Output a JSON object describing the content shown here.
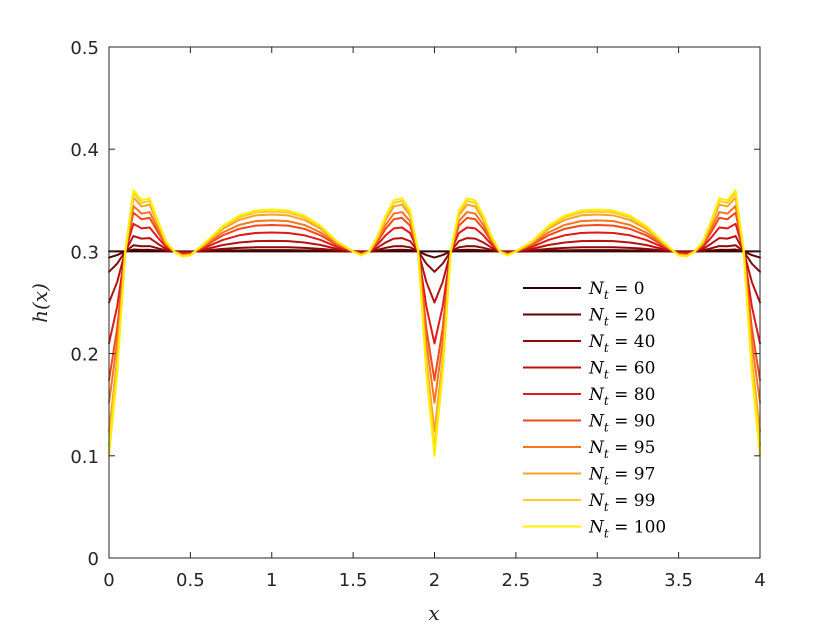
{
  "chart_data": {
    "type": "line",
    "xlabel": "x",
    "ylabel": "h(x)",
    "xlim": [
      0,
      4
    ],
    "ylim": [
      0,
      0.5
    ],
    "xticks": [
      0,
      0.5,
      1,
      1.5,
      2,
      2.5,
      3,
      3.5,
      4
    ],
    "xtick_labels": [
      "0",
      "0.5",
      "1",
      "1.5",
      "2",
      "2.5",
      "3",
      "3.5",
      "4"
    ],
    "yticks": [
      0,
      0.1,
      0.2,
      0.3,
      0.4,
      0.5
    ],
    "ytick_labels": [
      "0",
      "0.1",
      "0.2",
      "0.3",
      "0.4",
      "0.5"
    ],
    "grid": false,
    "legend_position": "lower-right",
    "x": [
      0,
      0.05,
      0.1,
      0.15,
      0.2,
      0.25,
      0.3,
      0.35,
      0.4,
      0.45,
      0.5,
      0.6,
      0.7,
      0.8,
      0.9,
      1.0,
      1.1,
      1.2,
      1.3,
      1.4,
      1.5,
      1.55,
      1.6,
      1.65,
      1.7,
      1.75,
      1.8,
      1.85,
      1.9,
      1.95,
      2.0,
      2.05,
      2.1,
      2.15,
      2.2,
      2.25,
      2.3,
      2.35,
      2.4,
      2.45,
      2.5,
      2.6,
      2.7,
      2.8,
      2.9,
      3.0,
      3.1,
      3.2,
      3.3,
      3.4,
      3.5,
      3.55,
      3.6,
      3.65,
      3.7,
      3.75,
      3.8,
      3.85,
      3.9,
      3.95,
      4.0
    ],
    "base_shape": [
      -0.2,
      -0.12,
      0.0,
      0.06,
      0.05,
      0.052,
      0.03,
      0.01,
      0.0,
      -0.005,
      -0.004,
      0.01,
      0.025,
      0.035,
      0.04,
      0.041,
      0.04,
      0.035,
      0.025,
      0.01,
      0.0,
      -0.004,
      0.0,
      0.015,
      0.035,
      0.05,
      0.052,
      0.04,
      0.0,
      -0.12,
      -0.2,
      -0.12,
      0.0,
      0.04,
      0.052,
      0.05,
      0.035,
      0.015,
      0.0,
      -0.004,
      0.0,
      0.01,
      0.025,
      0.035,
      0.04,
      0.041,
      0.04,
      0.035,
      0.025,
      0.01,
      -0.004,
      -0.005,
      0.0,
      0.01,
      0.03,
      0.052,
      0.05,
      0.06,
      0.0,
      -0.12,
      -0.2
    ],
    "baseline": 0.3,
    "series": [
      {
        "name": "N_t = 0",
        "legend_var": "N",
        "legend_sub": "t",
        "legend_value": "0",
        "amplitude": 0.0,
        "color": "#2b0000"
      },
      {
        "name": "N_t = 20",
        "legend_var": "N",
        "legend_sub": "t",
        "legend_value": "20",
        "amplitude": 0.03,
        "color": "#5a0000"
      },
      {
        "name": "N_t = 40",
        "legend_var": "N",
        "legend_sub": "t",
        "legend_value": "40",
        "amplitude": 0.1,
        "color": "#8a0a0a"
      },
      {
        "name": "N_t = 60",
        "legend_var": "N",
        "legend_sub": "t",
        "legend_value": "60",
        "amplitude": 0.25,
        "color": "#b81010"
      },
      {
        "name": "N_t = 80",
        "legend_var": "N",
        "legend_sub": "t",
        "legend_value": "80",
        "amplitude": 0.45,
        "color": "#e01a1a"
      },
      {
        "name": "N_t = 90",
        "legend_var": "N",
        "legend_sub": "t",
        "legend_value": "90",
        "amplitude": 0.63,
        "color": "#f04a1a"
      },
      {
        "name": "N_t = 95",
        "legend_var": "N",
        "legend_sub": "t",
        "legend_value": "95",
        "amplitude": 0.74,
        "color": "#f8741e"
      },
      {
        "name": "N_t = 97",
        "legend_var": "N",
        "legend_sub": "t",
        "legend_value": "97",
        "amplitude": 0.88,
        "color": "#fda226"
      },
      {
        "name": "N_t = 99",
        "legend_var": "N",
        "legend_sub": "t",
        "legend_value": "99",
        "amplitude": 0.95,
        "color": "#ffcc2a"
      },
      {
        "name": "N_t = 100",
        "legend_var": "N",
        "legend_sub": "t",
        "legend_value": "100",
        "amplitude": 1.0,
        "color": "#ffee00"
      }
    ]
  }
}
